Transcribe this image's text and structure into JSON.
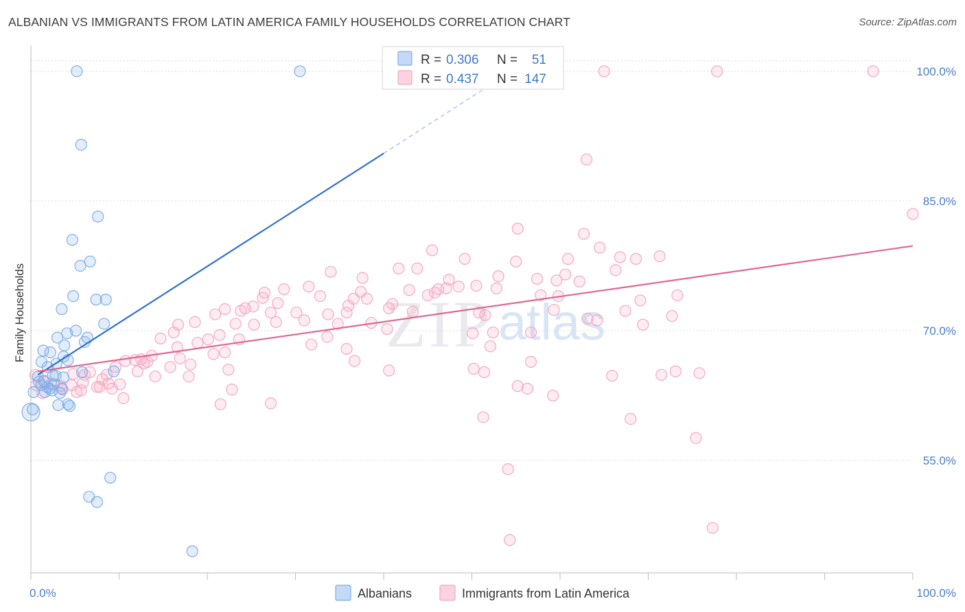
{
  "title": "ALBANIAN VS IMMIGRANTS FROM LATIN AMERICA FAMILY HOUSEHOLDS CORRELATION CHART",
  "source": "Source: ZipAtlas.com",
  "watermark": {
    "zip": "ZIP",
    "atlas": "atlas"
  },
  "chart_data": {
    "type": "scatter",
    "title": "ALBANIAN VS IMMIGRANTS FROM LATIN AMERICA FAMILY HOUSEHOLDS CORRELATION CHART",
    "xlabel": "",
    "ylabel": "Family Households",
    "xlim": [
      0,
      100
    ],
    "ylim": [
      42,
      103
    ],
    "x_tick_labels": [
      "0.0%",
      "100.0%"
    ],
    "y_ticks": [
      55,
      70,
      85,
      100
    ],
    "y_tick_labels": [
      "55.0%",
      "70.0%",
      "85.0%",
      "100.0%"
    ],
    "grid": true,
    "legend_position": "top-center",
    "series": [
      {
        "name": "Albanians",
        "color": "#7eaee8",
        "line_color": "#2f6fcc",
        "R": "0.306",
        "N": "51",
        "trend": {
          "x0": 0.8,
          "y0": 64.9,
          "x1": 40.0,
          "y1": 90.5,
          "dash_to_x": 53.0,
          "dash_to_y": 99.0
        },
        "points": [
          [
            5.2,
            100
          ],
          [
            30.5,
            100
          ],
          [
            5.7,
            91.5
          ],
          [
            7.6,
            83.2
          ],
          [
            4.7,
            80.5
          ],
          [
            6.7,
            78
          ],
          [
            5.6,
            77.5
          ],
          [
            4.8,
            74
          ],
          [
            7.4,
            73.6
          ],
          [
            8.5,
            73.6
          ],
          [
            3.5,
            72.5
          ],
          [
            8.3,
            70.8
          ],
          [
            4.1,
            69.7
          ],
          [
            5.1,
            70
          ],
          [
            3,
            69.2
          ],
          [
            6.1,
            68.7
          ],
          [
            6.4,
            69.2
          ],
          [
            1.4,
            67.7
          ],
          [
            2.2,
            67.5
          ],
          [
            3.8,
            68.3
          ],
          [
            3.7,
            67
          ],
          [
            4.2,
            66.6
          ],
          [
            1.2,
            66.4
          ],
          [
            2.9,
            66.2
          ],
          [
            1.9,
            65.8
          ],
          [
            5.8,
            65.2
          ],
          [
            9.4,
            65.3
          ],
          [
            2.5,
            64.8
          ],
          [
            0.8,
            64.7
          ],
          [
            1.5,
            64.2
          ],
          [
            2.8,
            64.8
          ],
          [
            1.9,
            63.5
          ],
          [
            2.6,
            63.8
          ],
          [
            1.2,
            63.7
          ],
          [
            3.5,
            63.3
          ],
          [
            1.6,
            62.9
          ],
          [
            2.4,
            63.1
          ],
          [
            3.3,
            62.8
          ],
          [
            0.3,
            62.9
          ],
          [
            3.1,
            61.4
          ],
          [
            4.2,
            61.5
          ],
          [
            4.4,
            61.3
          ],
          [
            0.2,
            60.9
          ],
          [
            0,
            60.6
          ],
          [
            9,
            53
          ],
          [
            6.6,
            50.8
          ],
          [
            7.5,
            50.2
          ],
          [
            18.3,
            44.5
          ],
          [
            0.9,
            64.1
          ],
          [
            2.1,
            63.3
          ],
          [
            3.7,
            64.6
          ]
        ]
      },
      {
        "name": "Immigrants from Latin America",
        "color": "#f4a8c0",
        "line_color": "#e06690",
        "R": "0.437",
        "N": "147",
        "trend": {
          "x0": 0.8,
          "y0": 65.3,
          "x1": 100,
          "y1": 79.8
        },
        "points": [
          [
            65,
            100
          ],
          [
            77.8,
            100
          ],
          [
            95.5,
            100
          ],
          [
            63,
            89.8
          ],
          [
            100,
            83.5
          ],
          [
            55.2,
            81.8
          ],
          [
            62.7,
            81.2
          ],
          [
            64.5,
            79.6
          ],
          [
            45.5,
            79.3
          ],
          [
            49.2,
            78.3
          ],
          [
            60.9,
            78.3
          ],
          [
            66.8,
            78.5
          ],
          [
            68.6,
            78.3
          ],
          [
            71.3,
            78.6
          ],
          [
            55,
            78
          ],
          [
            41.7,
            77.2
          ],
          [
            43.8,
            77.2
          ],
          [
            66.3,
            77
          ],
          [
            34,
            76.8
          ],
          [
            53,
            76.3
          ],
          [
            60.6,
            76.5
          ],
          [
            37.6,
            76.1
          ],
          [
            57.4,
            76
          ],
          [
            59.6,
            75.8
          ],
          [
            47.4,
            75.9
          ],
          [
            62.2,
            75.7
          ],
          [
            31.5,
            75.1
          ],
          [
            48.5,
            75.1
          ],
          [
            46.2,
            74.8
          ],
          [
            47.1,
            74.9
          ],
          [
            50.5,
            75.2
          ],
          [
            52.8,
            74.9
          ],
          [
            28.7,
            74.8
          ],
          [
            42.9,
            74.7
          ],
          [
            45.8,
            74.4
          ],
          [
            37.4,
            74.5
          ],
          [
            26.5,
            74.4
          ],
          [
            73.3,
            74.1
          ],
          [
            57.8,
            74.1
          ],
          [
            59.8,
            74
          ],
          [
            32.8,
            74
          ],
          [
            36.6,
            73.7
          ],
          [
            38.1,
            73.7
          ],
          [
            45,
            74.1
          ],
          [
            26.3,
            73.8
          ],
          [
            28,
            73.2
          ],
          [
            69.1,
            73.5
          ],
          [
            24.3,
            72.6
          ],
          [
            36,
            72.9
          ],
          [
            40.6,
            72.6
          ],
          [
            25.2,
            72.8
          ],
          [
            22,
            72.5
          ],
          [
            41,
            73.1
          ],
          [
            59.3,
            72.4
          ],
          [
            23.8,
            72.3
          ],
          [
            30.1,
            72.1
          ],
          [
            35.8,
            72.1
          ],
          [
            43.3,
            72.2
          ],
          [
            27.2,
            72.1
          ],
          [
            33.7,
            71.9
          ],
          [
            20.9,
            71.9
          ],
          [
            51.5,
            71.8
          ],
          [
            67.4,
            72.3
          ],
          [
            50.8,
            72.1
          ],
          [
            72.7,
            71.7
          ],
          [
            31,
            71.2
          ],
          [
            64.2,
            71.2
          ],
          [
            25.3,
            70.7
          ],
          [
            63.1,
            71.4
          ],
          [
            18.6,
            71
          ],
          [
            16.7,
            70.7
          ],
          [
            23.2,
            70.8
          ],
          [
            38.6,
            70.9
          ],
          [
            27.8,
            71
          ],
          [
            34.8,
            70.8
          ],
          [
            69.4,
            70.7
          ],
          [
            40.4,
            70.2
          ],
          [
            52.4,
            69.8
          ],
          [
            56.7,
            69.8
          ],
          [
            16.2,
            69.8
          ],
          [
            50.1,
            69.7
          ],
          [
            21.4,
            69.5
          ],
          [
            33.6,
            69.3
          ],
          [
            14.7,
            69.1
          ],
          [
            20.1,
            69
          ],
          [
            23.6,
            69
          ],
          [
            31.8,
            68.4
          ],
          [
            18.9,
            68.6
          ],
          [
            16.6,
            68.1
          ],
          [
            52.1,
            68.2
          ],
          [
            35.8,
            67.9
          ],
          [
            22,
            67.5
          ],
          [
            20.7,
            67.3
          ],
          [
            13.7,
            67.1
          ],
          [
            16.9,
            66.8
          ],
          [
            11.8,
            66.6
          ],
          [
            12.5,
            66.7
          ],
          [
            13.2,
            66.4
          ],
          [
            10.7,
            66.5
          ],
          [
            12.8,
            66.2
          ],
          [
            18.1,
            66.1
          ],
          [
            36.7,
            66.5
          ],
          [
            56.7,
            66.4
          ],
          [
            15.8,
            65.8
          ],
          [
            9.6,
            65.8
          ],
          [
            22.4,
            65.5
          ],
          [
            50.2,
            65.6
          ],
          [
            40.6,
            65.4
          ],
          [
            51.4,
            65.2
          ],
          [
            73.1,
            65.3
          ],
          [
            75.8,
            65.1
          ],
          [
            71.5,
            64.9
          ],
          [
            65.9,
            64.8
          ],
          [
            4.8,
            65
          ],
          [
            6.7,
            65.2
          ],
          [
            12.1,
            65.3
          ],
          [
            6.1,
            64.9
          ],
          [
            17.9,
            64.7
          ],
          [
            8.6,
            64.9
          ],
          [
            14.1,
            64.7
          ],
          [
            8.1,
            64.4
          ],
          [
            5.9,
            64
          ],
          [
            4.6,
            63.7
          ],
          [
            8.8,
            63.9
          ],
          [
            10.1,
            63.8
          ],
          [
            3.4,
            63.6
          ],
          [
            7.5,
            63.5
          ],
          [
            1.5,
            64.1
          ],
          [
            0.5,
            64.9
          ],
          [
            2.3,
            63.9
          ],
          [
            55.2,
            63.6
          ],
          [
            56.3,
            63.3
          ],
          [
            59.2,
            62.5
          ],
          [
            22.8,
            63.2
          ],
          [
            7.8,
            63.5
          ],
          [
            3.6,
            63.2
          ],
          [
            5.7,
            63.1
          ],
          [
            9.2,
            63.3
          ],
          [
            5.2,
            62.9
          ],
          [
            1.3,
            62.8
          ],
          [
            10.5,
            62.2
          ],
          [
            0.6,
            63.7
          ],
          [
            21.5,
            61.5
          ],
          [
            27.2,
            61.6
          ],
          [
            51.3,
            60
          ],
          [
            68,
            59.8
          ],
          [
            75.4,
            57.6
          ],
          [
            54.1,
            54
          ],
          [
            54.3,
            45.8
          ],
          [
            77.3,
            47.2
          ]
        ]
      }
    ]
  },
  "legend": {
    "r_label": "R =",
    "n_label": "N =",
    "rows": [
      {
        "r": "0.306",
        "n": "51",
        "color": "#7eaee8"
      },
      {
        "r": "0.437",
        "n": "147",
        "color": "#f4a8c0"
      }
    ]
  },
  "bottom_legend": [
    {
      "label": "Albanians",
      "color": "#7eaee8"
    },
    {
      "label": "Immigrants from Latin America",
      "color": "#f4a8c0"
    }
  ]
}
